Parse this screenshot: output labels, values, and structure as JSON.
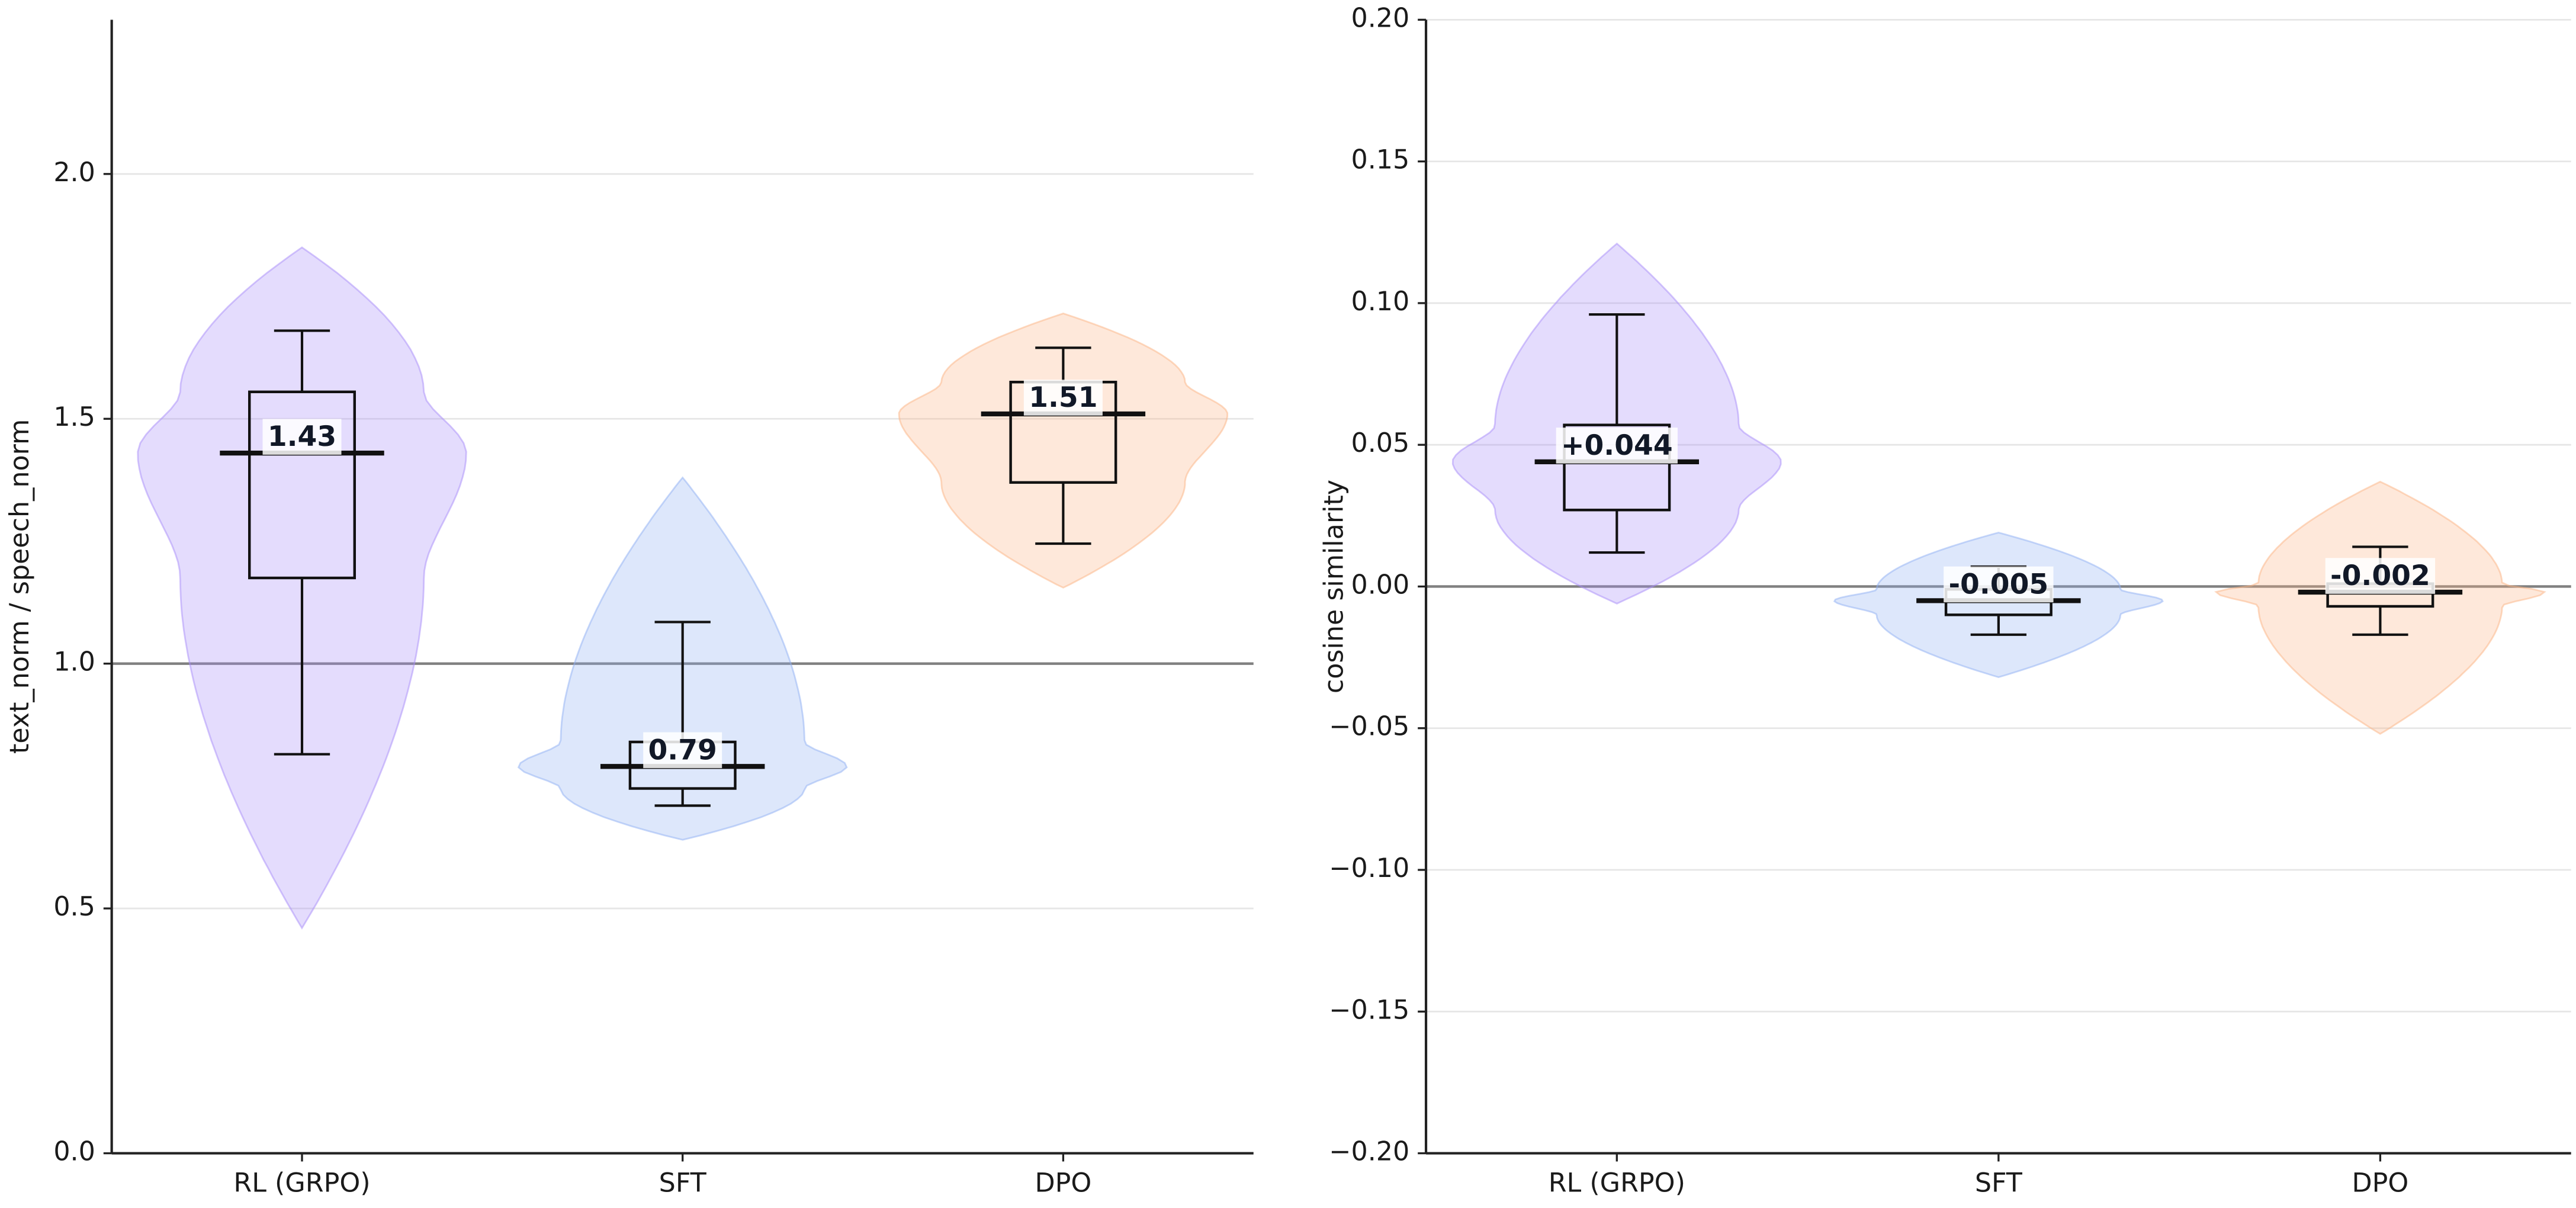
{
  "chart_data": [
    {
      "type": "violin",
      "ylabel": "text_norm / speech_norm",
      "categories": [
        "RL (GRPO)",
        "SFT",
        "DPO"
      ],
      "colors": [
        "#a78bfa",
        "#8fb0f3",
        "#fbb483"
      ],
      "whislo": [
        0.815,
        0.71,
        1.245
      ],
      "q1": [
        1.175,
        0.745,
        1.37
      ],
      "med": [
        1.43,
        0.79,
        1.51
      ],
      "q3": [
        1.555,
        0.84,
        1.575
      ],
      "whishi": [
        1.68,
        1.085,
        1.645
      ],
      "violin_min": [
        0.46,
        0.64,
        1.155
      ],
      "violin_max": [
        1.85,
        1.38,
        1.715
      ],
      "value_labels": [
        "1.43",
        "0.79",
        "1.51"
      ],
      "hline": 1.0,
      "ylim": [
        0,
        2.315
      ],
      "yticks": [
        {
          "value": 0,
          "label": "0.0"
        },
        0.5,
        {
          "value": 1,
          "label": "1.0"
        },
        1.5,
        {
          "value": 2,
          "label": "2.0"
        }
      ],
      "grid": true
    },
    {
      "type": "violin",
      "ylabel": "cosine similarity",
      "categories": [
        "RL (GRPO)",
        "SFT",
        "DPO"
      ],
      "colors": [
        "#a78bfa",
        "#8fb0f3",
        "#fbb483"
      ],
      "whislo": [
        0.012,
        -0.017,
        -0.017
      ],
      "q1": [
        0.027,
        -0.01,
        -0.007
      ],
      "med": [
        0.044,
        -0.005,
        -0.002
      ],
      "q3": [
        0.057,
        -0.001,
        0.001
      ],
      "whishi": [
        0.096,
        0.007,
        0.014
      ],
      "violin_min": [
        -0.006,
        -0.032,
        -0.052
      ],
      "violin_max": [
        0.121,
        0.019,
        0.037
      ],
      "value_labels": [
        "+0.044",
        "-0.005",
        "-0.002"
      ],
      "hline": 0,
      "ylim": [
        -0.2,
        0.2
      ],
      "yticks": [
        {
          "value": -0.2,
          "label": "−0.20"
        },
        {
          "value": -0.15,
          "label": "−0.15"
        },
        {
          "value": -0.1,
          "label": "−0.10"
        },
        {
          "value": -0.05,
          "label": "−0.05"
        },
        {
          "value": 0,
          "label": "0.00"
        },
        {
          "value": 0.05,
          "label": "0.05"
        },
        {
          "value": 0.1,
          "label": "0.10"
        },
        {
          "value": 0.15,
          "label": "0.15"
        },
        {
          "value": 0.2,
          "label": "0.20"
        }
      ],
      "grid": true
    }
  ]
}
